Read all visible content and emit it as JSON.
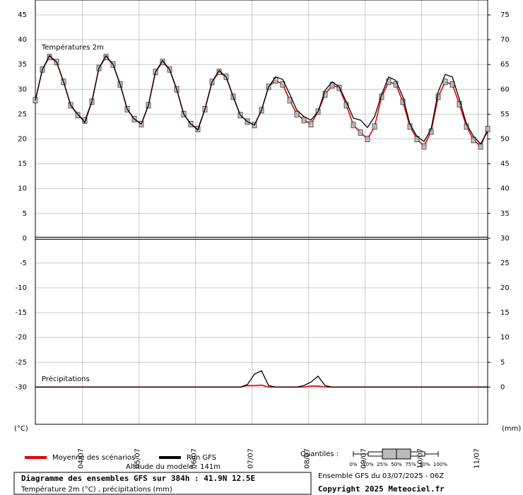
{
  "chart_data": {
    "type": "line",
    "title": "Diagramme des ensembles GFS sur 384h : 41.9N 12.5E",
    "subtitle": "Température 2m (°C) , précipitations (mm)",
    "panel_labels": [
      "Températures 2m",
      "Précipitations"
    ],
    "y_label": "(°C)",
    "y2_label": "(mm)",
    "altitude": "Altitude du modele : 141m",
    "quantiles_title": "Quantiles :",
    "quantile_labels": [
      "0%",
      "10%",
      "25%",
      "50%",
      "75%",
      "90%",
      "100%"
    ],
    "run_info": "Ensemble GFS du 03/07/2025 - 06Z",
    "copyright": "Copyright 2025 Meteociel.fr",
    "grid": true,
    "xlim": [
      4,
      196
    ],
    "xticks": [
      {
        "value": 24,
        "label": "04/07"
      },
      {
        "value": 48,
        "label": "05/07"
      },
      {
        "value": 72,
        "label": "06/07"
      },
      {
        "value": 96,
        "label": "07/07"
      },
      {
        "value": 120,
        "label": "08/07"
      },
      {
        "value": 144,
        "label": "09/07"
      },
      {
        "value": 168,
        "label": "10/07"
      },
      {
        "value": 192,
        "label": "11/07"
      }
    ],
    "ylim": [
      -37.5,
      48
    ],
    "yticks": [
      45,
      40,
      35,
      30,
      25,
      20,
      15,
      10,
      5,
      0,
      -5,
      -10,
      -15,
      -20,
      -25,
      -30
    ],
    "y2lim": [
      -7.5,
      78
    ],
    "y2ticks": [
      75,
      70,
      65,
      60,
      55,
      50,
      45,
      40,
      35,
      30,
      25,
      20,
      15,
      10,
      5,
      0
    ],
    "x": [
      4,
      7,
      10,
      13,
      16,
      19,
      22,
      25,
      28,
      31,
      34,
      37,
      40,
      43,
      46,
      49,
      52,
      55,
      58,
      61,
      64,
      67,
      70,
      73,
      76,
      79,
      82,
      85,
      88,
      91,
      94,
      97,
      100,
      103,
      106,
      109,
      112,
      115,
      118,
      121,
      124,
      127,
      130,
      133,
      136,
      139,
      142,
      145,
      148,
      151,
      154,
      157,
      160,
      163,
      166,
      169,
      172,
      175,
      178,
      181,
      184,
      187,
      190,
      193,
      196
    ],
    "series": [
      {
        "name": "Moyenne des scénarios",
        "color": "#e00000",
        "axis": "y",
        "values": [
          27.8,
          34,
          36.5,
          35.5,
          31.5,
          26.8,
          24.8,
          23.7,
          27.5,
          34.3,
          36.5,
          35,
          31,
          26,
          24,
          23,
          26.8,
          33.5,
          35.5,
          34,
          30,
          25,
          23,
          22,
          26,
          31.5,
          33.5,
          32.5,
          28.5,
          24.8,
          23.5,
          22.8,
          25.8,
          30.5,
          31.8,
          31,
          27.8,
          25,
          23.8,
          23,
          25.5,
          29,
          30.8,
          30.3,
          26.8,
          22.8,
          21.3,
          20,
          22.5,
          28.5,
          31.5,
          31,
          27.5,
          22.5,
          20,
          18.5,
          21.5,
          28.5,
          31.5,
          31,
          27,
          22.5,
          19.8,
          18.5,
          22
        ]
      },
      {
        "name": "Run GFS",
        "color": "#000000",
        "axis": "y",
        "values": [
          27.8,
          34,
          36.8,
          35.5,
          31.5,
          26.8,
          25,
          23.3,
          27.5,
          34.3,
          36.8,
          35,
          31,
          26,
          24,
          23,
          26.8,
          33.5,
          35.8,
          34,
          30,
          25,
          23,
          21.8,
          26,
          31.5,
          33.8,
          32.5,
          28.5,
          24.8,
          23.5,
          22.8,
          25.8,
          30.5,
          32.5,
          32,
          29,
          25.8,
          24.5,
          23.8,
          25.5,
          29.8,
          31.5,
          30.5,
          27.5,
          24.2,
          23.8,
          22.3,
          24.5,
          29,
          32.5,
          31.8,
          28.5,
          23,
          20.5,
          19.5,
          22,
          29.5,
          33,
          32.5,
          28,
          23,
          20.5,
          19,
          21.5
        ]
      },
      {
        "name": "Moyenne des scénarios",
        "color": "#e00000",
        "axis": "y2",
        "values": [
          0,
          0,
          0,
          0,
          0,
          0,
          0,
          0,
          0,
          0,
          0,
          0,
          0,
          0,
          0,
          0,
          0,
          0,
          0,
          0,
          0,
          0,
          0,
          0,
          0,
          0,
          0,
          0,
          0,
          0,
          0.3,
          0.3,
          0.4,
          0,
          0,
          0,
          0,
          0,
          0,
          0.2,
          0.2,
          0,
          0,
          0,
          0,
          0,
          0,
          0,
          0,
          0,
          0,
          0,
          0,
          0,
          0,
          0,
          0,
          0,
          0,
          0,
          0,
          0,
          0,
          0,
          0
        ]
      },
      {
        "name": "Run GFS",
        "color": "#000000",
        "axis": "y2",
        "values": [
          0,
          0,
          0,
          0,
          0,
          0,
          0,
          0,
          0,
          0,
          0,
          0,
          0,
          0,
          0,
          0,
          0,
          0,
          0,
          0,
          0,
          0,
          0,
          0,
          0,
          0,
          0,
          0,
          0,
          0,
          0.5,
          2.6,
          3.3,
          0.3,
          0,
          0,
          0,
          0,
          0.3,
          1,
          2.2,
          0.3,
          0,
          0,
          0,
          0,
          0,
          0,
          0,
          0,
          0,
          0,
          0,
          0,
          0,
          0,
          0,
          0,
          0,
          0,
          0,
          0,
          0,
          0,
          0
        ]
      }
    ]
  }
}
